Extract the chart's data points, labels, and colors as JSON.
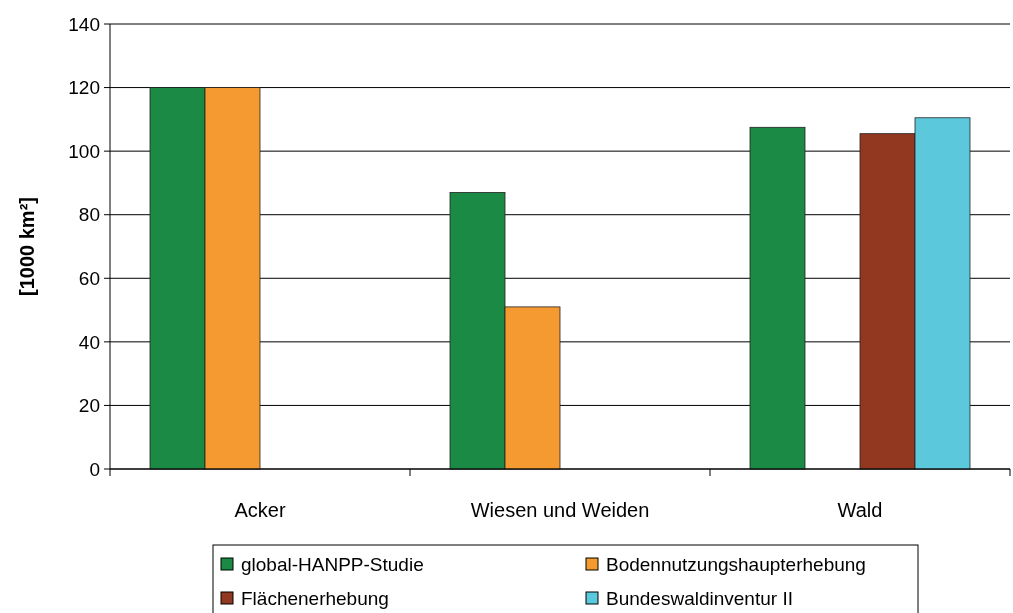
{
  "chart_data": {
    "type": "bar",
    "ylabel": "[1000 km²]",
    "categories": [
      "Acker",
      "Wiesen und Weiden",
      "Wald"
    ],
    "series": [
      {
        "name": "global-HANPP-Studie",
        "color": "#1b8a45",
        "values": [
          120,
          87,
          107.5
        ]
      },
      {
        "name": "Bodennutzungshaupterhebung",
        "color": "#f59a30",
        "values": [
          120,
          51,
          null
        ]
      },
      {
        "name": "Flächenerhebung",
        "color": "#923720",
        "values": [
          null,
          null,
          105.5
        ]
      },
      {
        "name": "Bundeswaldinventur II",
        "color": "#5bc8dc",
        "values": [
          null,
          null,
          110.5
        ]
      }
    ],
    "ylim": [
      0,
      140
    ],
    "yticks": [
      0,
      20,
      40,
      60,
      80,
      100,
      120,
      140
    ],
    "grid": "y",
    "legend": "bottom"
  }
}
